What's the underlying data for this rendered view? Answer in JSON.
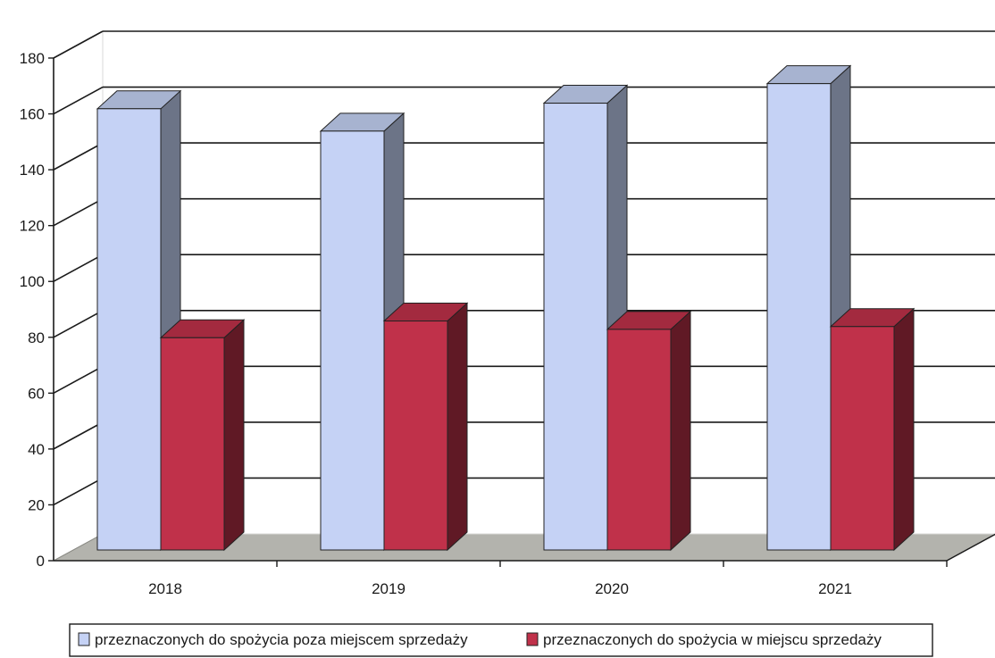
{
  "chart_data": {
    "type": "bar",
    "title": "",
    "xlabel": "",
    "ylabel": "",
    "categories": [
      "2018",
      "2019",
      "2020",
      "2021"
    ],
    "series": [
      {
        "name": "przeznaczonych do spożycia poza miejscem sprzedaży",
        "values": [
          158,
          150,
          160,
          167
        ],
        "color": "#c5d2f5"
      },
      {
        "name": "przeznaczonych do spożycia w miejscu sprzedaży",
        "values": [
          76,
          82,
          79,
          80
        ],
        "color": "#c0314a"
      }
    ],
    "ylim": [
      0,
      180
    ],
    "yticks": [
      "0",
      "20",
      "40",
      "60",
      "80",
      "100",
      "120",
      "140",
      "160",
      "180"
    ],
    "grid": true,
    "legend_position": "bottom",
    "style": "3d-column"
  }
}
